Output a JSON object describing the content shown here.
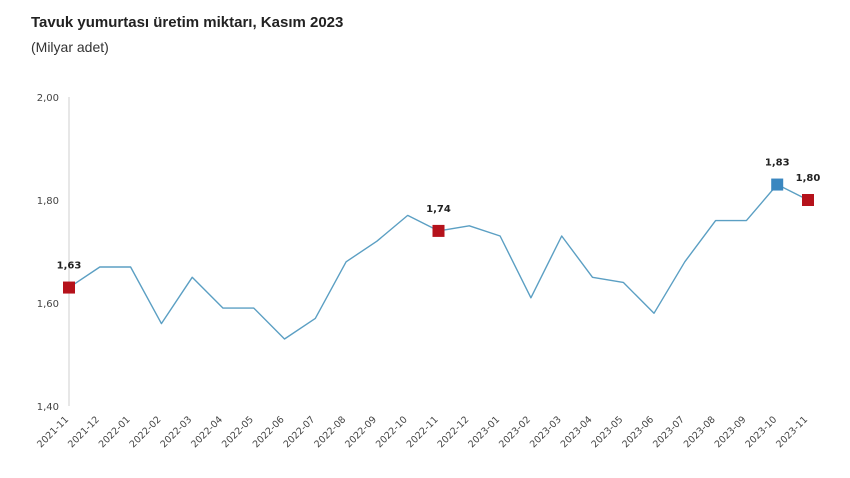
{
  "chart_data": {
    "type": "line",
    "title": "Tavuk yumurtası üretim miktarı, Kasım 2023",
    "subtitle": "(Milyar adet)",
    "categories": [
      "2021-11",
      "2021-12",
      "2022-01",
      "2022-02",
      "2022-03",
      "2022-04",
      "2022-05",
      "2022-06",
      "2022-07",
      "2022-08",
      "2022-09",
      "2022-10",
      "2022-11",
      "2022-12",
      "2023-01",
      "2023-02",
      "2023-03",
      "2023-04",
      "2023-05",
      "2023-06",
      "2023-07",
      "2023-08",
      "2023-09",
      "2023-10",
      "2023-11"
    ],
    "series": [
      {
        "values": [
          1.63,
          1.67,
          1.67,
          1.56,
          1.65,
          1.59,
          1.59,
          1.53,
          1.57,
          1.68,
          1.72,
          1.77,
          1.74,
          1.75,
          1.73,
          1.61,
          1.73,
          1.65,
          1.64,
          1.58,
          1.68,
          1.76,
          1.76,
          1.83,
          1.8
        ],
        "color": "#5b9fc3"
      }
    ],
    "ylim": [
      1.4,
      2.0
    ],
    "yticks": [
      "1,40",
      "1,60",
      "1,80",
      "2,00"
    ],
    "yticks_values": [
      1.4,
      1.6,
      1.8,
      2.0
    ],
    "highlights": [
      {
        "index": 0,
        "label": "1,63",
        "color": "#b5121b"
      },
      {
        "index": 12,
        "label": "1,74",
        "color": "#b5121b"
      },
      {
        "index": 23,
        "label": "1,83",
        "color": "#3a87c0"
      },
      {
        "index": 24,
        "label": "1,80",
        "color": "#b5121b"
      }
    ],
    "grid": false,
    "axis_color": "#cfcfcf"
  }
}
